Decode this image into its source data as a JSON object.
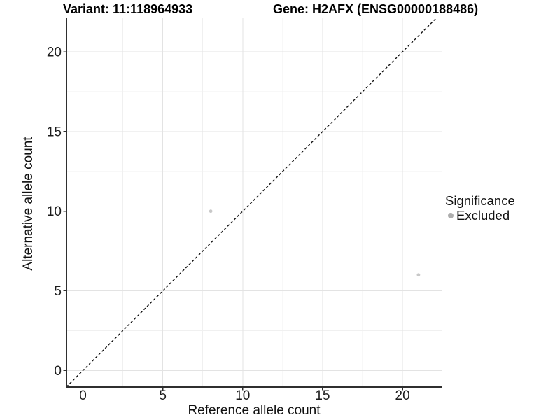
{
  "chart_data": {
    "type": "scatter",
    "title_left": "Variant: 11:118964933",
    "title_right": "Gene: H2AFX (ENSG00000188486)",
    "xlabel": "Reference allele count",
    "ylabel": "Alternative allele count",
    "xlim": [
      -1.03,
      22.45
    ],
    "ylim": [
      -1.04,
      22.11
    ],
    "xticks": [
      0,
      5,
      10,
      15,
      20
    ],
    "yticks": [
      0,
      5,
      10,
      15,
      20
    ],
    "minor_step": 2.5,
    "grid": true,
    "reference_line": {
      "type": "abline",
      "slope": 1,
      "intercept": 0,
      "style": "dashed",
      "color": "#111111"
    },
    "series": [
      {
        "name": "Excluded",
        "color": "#c8c8c8",
        "points": [
          {
            "x": 8,
            "y": 10
          },
          {
            "x": 21,
            "y": 6
          }
        ]
      }
    ],
    "legend": {
      "title": "Significance",
      "position": "right",
      "items": [
        {
          "label": "Excluded",
          "color": "#adadad"
        }
      ]
    },
    "colors": {
      "grid_major": "#e3e3e3",
      "grid_minor": "#f0f0f0",
      "axis_line": "#2f2f2f",
      "tick_text": "#1c1c1c"
    }
  }
}
